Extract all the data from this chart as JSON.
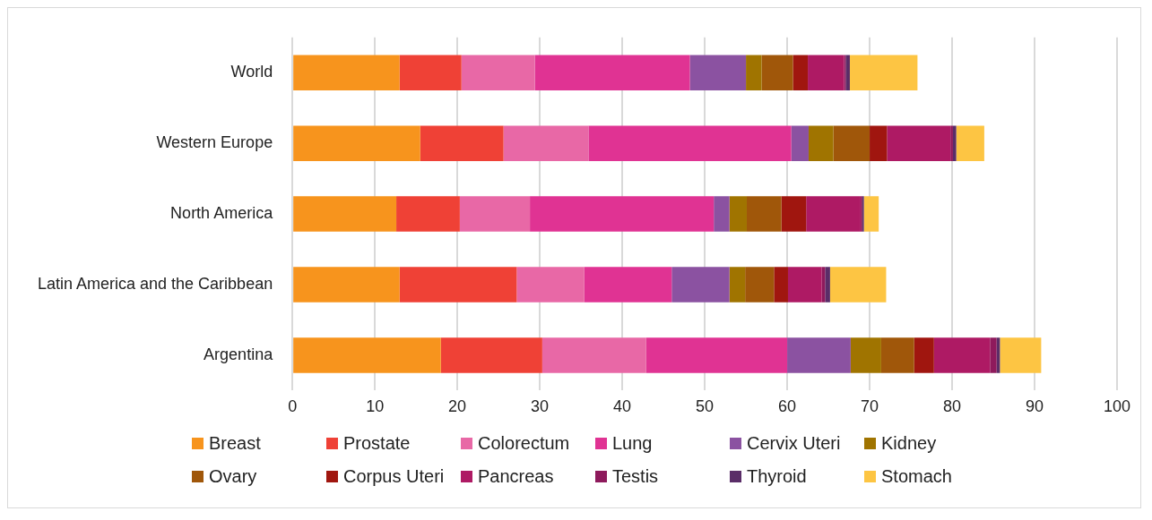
{
  "chart_data": {
    "type": "bar",
    "orientation": "horizontal",
    "stacked": true,
    "categories": [
      "World",
      "Western Europe",
      "North America",
      "Latin America and the Caribbean",
      "Argentina"
    ],
    "xlim": [
      0,
      100
    ],
    "xticks": [
      0,
      10,
      20,
      30,
      40,
      50,
      60,
      70,
      80,
      90,
      100
    ],
    "grid": "x",
    "legend": "bottom",
    "series": [
      {
        "name": "Breast",
        "color": "#f7941d",
        "values": [
          13.0,
          15.5,
          12.6,
          13.0,
          18.0
        ]
      },
      {
        "name": "Prostate",
        "color": "#ef4136",
        "values": [
          7.5,
          10.1,
          7.7,
          14.2,
          12.3
        ]
      },
      {
        "name": "Colorectum",
        "color": "#e868a6",
        "values": [
          8.9,
          10.3,
          8.5,
          8.2,
          12.6
        ]
      },
      {
        "name": "Lung",
        "color": "#e03393",
        "values": [
          18.8,
          24.6,
          22.3,
          10.6,
          17.1
        ]
      },
      {
        "name": "Cervix Uteri",
        "color": "#8b52a1",
        "values": [
          6.8,
          2.1,
          1.9,
          7.0,
          7.7
        ]
      },
      {
        "name": "Kidney",
        "color": "#a07400",
        "values": [
          1.9,
          3.0,
          2.1,
          1.9,
          3.7
        ]
      },
      {
        "name": "Ovary",
        "color": "#a0570a",
        "values": [
          3.8,
          4.4,
          4.2,
          3.5,
          4.0
        ]
      },
      {
        "name": "Corpus Uteri",
        "color": "#a0160f",
        "values": [
          1.8,
          2.1,
          3.0,
          1.7,
          2.4
        ]
      },
      {
        "name": "Pancreas",
        "color": "#ae1a64",
        "values": [
          4.4,
          7.7,
          6.6,
          4.1,
          6.8
        ]
      },
      {
        "name": "Testis",
        "color": "#8e1a5c",
        "values": [
          0.2,
          0.3,
          0.2,
          0.4,
          0.8
        ]
      },
      {
        "name": "Thyroid",
        "color": "#5a2d68",
        "values": [
          0.5,
          0.4,
          0.2,
          0.6,
          0.4
        ]
      },
      {
        "name": "Stomach",
        "color": "#fdc543",
        "values": [
          8.2,
          3.4,
          1.8,
          6.8,
          5.0
        ]
      }
    ]
  }
}
